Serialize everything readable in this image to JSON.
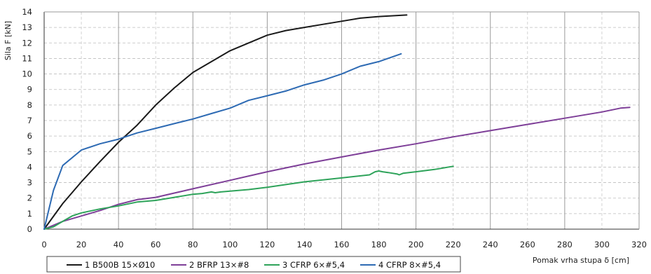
{
  "chart_data": {
    "type": "line",
    "xlabel": "Pomak vrha stupa δ [cm]",
    "ylabel": "Sila F [kN]",
    "xlim": [
      0,
      320
    ],
    "ylim": [
      0,
      14
    ],
    "xticks": [
      0,
      20,
      40,
      60,
      80,
      100,
      120,
      140,
      160,
      180,
      200,
      220,
      240,
      260,
      280,
      300,
      320
    ],
    "yticks": [
      0,
      1,
      2,
      3,
      4,
      5,
      6,
      7,
      8,
      9,
      10,
      11,
      12,
      13,
      14
    ],
    "grid": true,
    "legend_position": "bottom",
    "series": [
      {
        "name": "1 B500B 15×Ø10",
        "color": "#1a1a1a",
        "x": [
          0,
          10,
          20,
          30,
          40,
          50,
          60,
          70,
          80,
          90,
          100,
          110,
          120,
          130,
          140,
          150,
          160,
          170,
          180,
          195
        ],
        "y": [
          0,
          1.65,
          3.05,
          4.35,
          5.6,
          6.7,
          8.0,
          9.1,
          10.1,
          10.8,
          11.5,
          12.0,
          12.5,
          12.8,
          13.0,
          13.2,
          13.4,
          13.6,
          13.7,
          13.8
        ]
      },
      {
        "name": "2 BFRP 13×#8",
        "color": "#7e3f98",
        "x": [
          0,
          10,
          20,
          30,
          40,
          50,
          60,
          80,
          100,
          120,
          140,
          160,
          180,
          200,
          220,
          240,
          260,
          280,
          300,
          310,
          315
        ],
        "y": [
          0,
          0.5,
          0.85,
          1.2,
          1.6,
          1.9,
          2.05,
          2.6,
          3.15,
          3.7,
          4.2,
          4.65,
          5.1,
          5.5,
          5.95,
          6.35,
          6.75,
          7.15,
          7.55,
          7.8,
          7.85
        ]
      },
      {
        "name": "3 CFRP 6×#5,4",
        "color": "#2ea35a",
        "x": [
          0,
          5,
          10,
          15,
          20,
          30,
          40,
          50,
          60,
          70,
          80,
          85,
          90,
          92,
          95,
          100,
          110,
          120,
          140,
          160,
          175,
          178,
          180,
          182,
          185,
          190,
          191,
          193,
          200,
          210,
          220
        ],
        "y": [
          0,
          0.15,
          0.5,
          0.85,
          1.05,
          1.3,
          1.5,
          1.75,
          1.85,
          2.05,
          2.25,
          2.3,
          2.4,
          2.35,
          2.4,
          2.45,
          2.55,
          2.7,
          3.05,
          3.3,
          3.5,
          3.7,
          3.75,
          3.7,
          3.65,
          3.55,
          3.5,
          3.6,
          3.7,
          3.85,
          4.05
        ]
      },
      {
        "name": "4 CFRP 8×#5,4",
        "color": "#2d6ab3",
        "x": [
          0,
          5,
          10,
          20,
          30,
          40,
          50,
          60,
          70,
          80,
          90,
          100,
          110,
          120,
          130,
          140,
          150,
          160,
          170,
          180,
          192
        ],
        "y": [
          0,
          2.5,
          4.1,
          5.1,
          5.5,
          5.8,
          6.2,
          6.5,
          6.8,
          7.1,
          7.45,
          7.8,
          8.3,
          8.6,
          8.9,
          9.3,
          9.6,
          10.0,
          10.5,
          10.8,
          11.3
        ]
      }
    ]
  }
}
